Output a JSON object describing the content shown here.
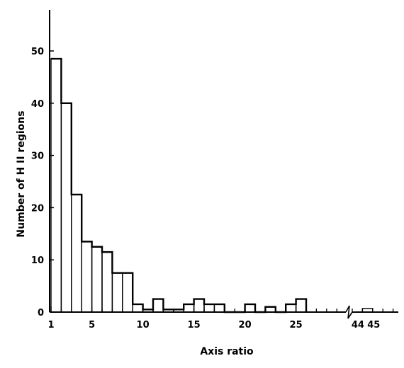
{
  "chart_data": {
    "type": "bar",
    "title": "",
    "xlabel": "Axis ratio",
    "ylabel": "Number of H II regions",
    "ylim": [
      0,
      57
    ],
    "y_ticks": [
      0,
      10,
      20,
      30,
      40,
      50
    ],
    "x_tick_labels": [
      "1",
      "5",
      "10",
      "15",
      "20",
      "25",
      "44",
      "45"
    ],
    "x_axis_break": "between 29 and 43",
    "grid": false,
    "bins": [
      {
        "x0": 1,
        "x1": 2,
        "value": 48.5
      },
      {
        "x0": 2,
        "x1": 3,
        "value": 40
      },
      {
        "x0": 3,
        "x1": 4,
        "value": 22.5
      },
      {
        "x0": 4,
        "x1": 5,
        "value": 13.5
      },
      {
        "x0": 5,
        "x1": 6,
        "value": 12.5
      },
      {
        "x0": 6,
        "x1": 7,
        "value": 11.5
      },
      {
        "x0": 7,
        "x1": 8,
        "value": 7.5
      },
      {
        "x0": 8,
        "x1": 9,
        "value": 7.5
      },
      {
        "x0": 9,
        "x1": 10,
        "value": 1.5
      },
      {
        "x0": 10,
        "x1": 11,
        "value": 0.5
      },
      {
        "x0": 11,
        "x1": 12,
        "value": 2.5
      },
      {
        "x0": 12,
        "x1": 13,
        "value": 0.5
      },
      {
        "x0": 13,
        "x1": 14,
        "value": 0.5
      },
      {
        "x0": 14,
        "x1": 15,
        "value": 1.5
      },
      {
        "x0": 15,
        "x1": 16,
        "value": 2.5
      },
      {
        "x0": 16,
        "x1": 17,
        "value": 1.5
      },
      {
        "x0": 17,
        "x1": 18,
        "value": 1.5
      },
      {
        "x0": 20,
        "x1": 21,
        "value": 1.5
      },
      {
        "x0": 22,
        "x1": 23,
        "value": 1
      },
      {
        "x0": 24,
        "x1": 25,
        "value": 1.5
      },
      {
        "x0": 25,
        "x1": 26,
        "value": 2.5
      },
      {
        "x0": 44,
        "x1": 45,
        "value": 0.7
      }
    ]
  }
}
